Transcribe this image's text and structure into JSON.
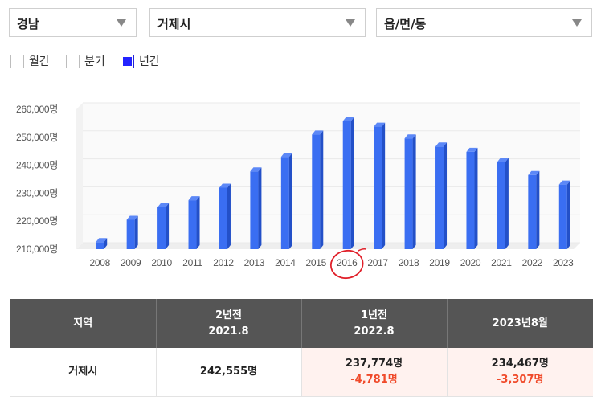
{
  "filters": {
    "province": "경남",
    "city": "거제시",
    "district": "읍/면/동"
  },
  "period_options": [
    {
      "label": "월간",
      "checked": false
    },
    {
      "label": "분기",
      "checked": false
    },
    {
      "label": "년간",
      "checked": true
    }
  ],
  "colors": {
    "bar_front": "#3a6ef2",
    "bar_side": "#2350c8",
    "bar_top": "#5c88f7",
    "header_bg": "#555555",
    "change_text": "#f04a2a",
    "highlight_bg": "#fff2ef",
    "circle_annotation": "#e0202a"
  },
  "chart_data": {
    "type": "bar",
    "categories": [
      "2008",
      "2009",
      "2010",
      "2011",
      "2012",
      "2013",
      "2014",
      "2015",
      "2016",
      "2017",
      "2018",
      "2019",
      "2020",
      "2021",
      "2022",
      "2023"
    ],
    "values": [
      212500,
      220500,
      225000,
      227500,
      232000,
      237800,
      243000,
      251000,
      255800,
      253800,
      249600,
      246700,
      244800,
      241200,
      236500,
      233100
    ],
    "y_tick_labels": [
      "210,000명",
      "220,000명",
      "230,000명",
      "240,000명",
      "250,000명",
      "260,000명"
    ],
    "y_ticks": [
      210000,
      220000,
      230000,
      240000,
      250000,
      260000
    ],
    "ylim": [
      210000,
      260000
    ],
    "grid": true,
    "highlighted_category": "2016"
  },
  "table": {
    "headers": [
      {
        "line1": "지역",
        "line2": ""
      },
      {
        "line1": "2년전",
        "line2": "2021.8"
      },
      {
        "line1": "1년전",
        "line2": "2022.8"
      },
      {
        "line1": "2023년8월",
        "line2": ""
      }
    ],
    "row": {
      "region": "거제시",
      "two_years_ago": "242,555명",
      "one_year_ago": "237,774명",
      "one_year_ago_change": "-4,781명",
      "current": "234,467명",
      "current_change": "-3,307명"
    }
  }
}
